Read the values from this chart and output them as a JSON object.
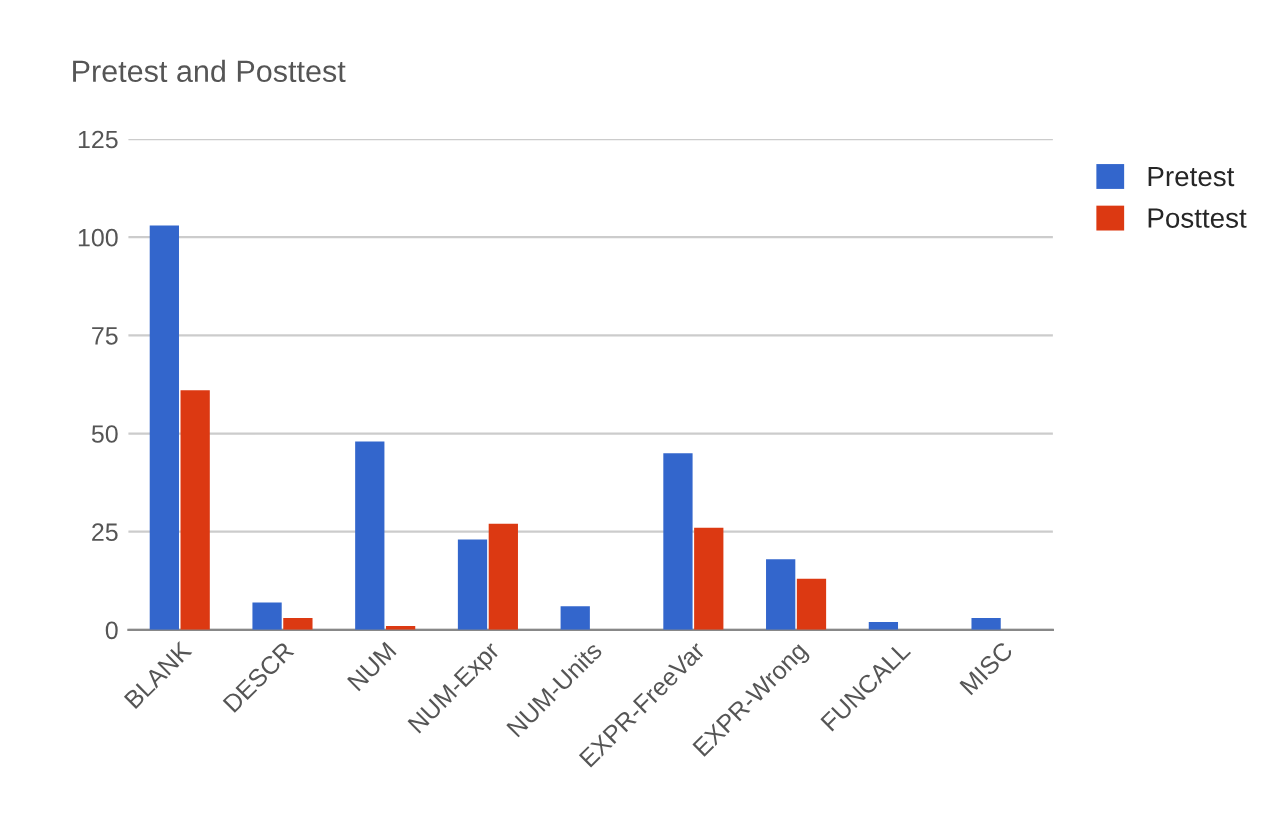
{
  "chart_data": {
    "type": "bar",
    "title": "Pretest and Posttest",
    "categories": [
      "BLANK",
      "DESCR",
      "NUM",
      "NUM-Expr",
      "NUM-Units",
      "EXPR-FreeVar",
      "EXPR-Wrong",
      "FUNCALL",
      "MISC"
    ],
    "series": [
      {
        "name": "Pretest",
        "color": "#3366cc",
        "values": [
          103,
          7,
          48,
          23,
          6,
          45,
          18,
          2,
          3
        ]
      },
      {
        "name": "Posttest",
        "color": "#dc3912",
        "values": [
          61,
          3,
          1,
          27,
          0,
          26,
          13,
          0,
          0
        ]
      }
    ],
    "ylim": [
      0,
      125
    ],
    "yticks": [
      0,
      25,
      50,
      75,
      100,
      125
    ],
    "grid": "y",
    "legend": "top right"
  }
}
